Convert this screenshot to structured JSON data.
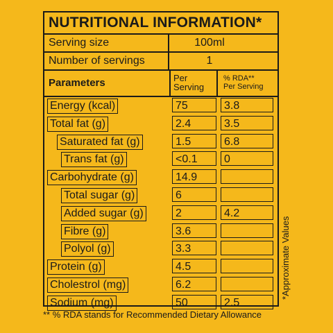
{
  "title": "NUTRITIONAL INFORMATION*",
  "serving_size": {
    "label": "Serving size",
    "value": "100ml"
  },
  "servings": {
    "label": "Number of servings",
    "value": "1"
  },
  "header": {
    "parameters": "Parameters",
    "per_serving_1": "Per",
    "per_serving_2": "Serving",
    "rda_1": "% RDA**",
    "rda_2": "Per Serving"
  },
  "rows": [
    {
      "name": "Energy (kcal)",
      "per_serving": "75",
      "rda": "3.8"
    },
    {
      "name": "Total fat (g)",
      "per_serving": "2.4",
      "rda": "3.5"
    },
    {
      "name": "Saturated fat (g)",
      "per_serving": "1.5",
      "rda": "6.8"
    },
    {
      "name": "Trans fat (g)",
      "per_serving": "<0.1",
      "rda": "0"
    },
    {
      "name": "Carbohydrate (g)",
      "per_serving": "14.9",
      "rda": ""
    },
    {
      "name": "Total sugar (g)",
      "per_serving": "6",
      "rda": ""
    },
    {
      "name": "Added sugar (g)",
      "per_serving": "2",
      "rda": "4.2"
    },
    {
      "name": "Fibre (g)",
      "per_serving": "3.6",
      "rda": ""
    },
    {
      "name": "Polyol (g)",
      "per_serving": "3.3",
      "rda": ""
    },
    {
      "name": "Protein (g)",
      "per_serving": "4.5",
      "rda": ""
    },
    {
      "name": "Cholestrol (mg)",
      "per_serving": "6.2",
      "rda": ""
    },
    {
      "name": "Sodium (mg)",
      "per_serving": "50",
      "rda": "2.5"
    }
  ],
  "side_note": "*Approximate Values",
  "footnote": "** % RDA stands for Recommended Dietary Allowance"
}
